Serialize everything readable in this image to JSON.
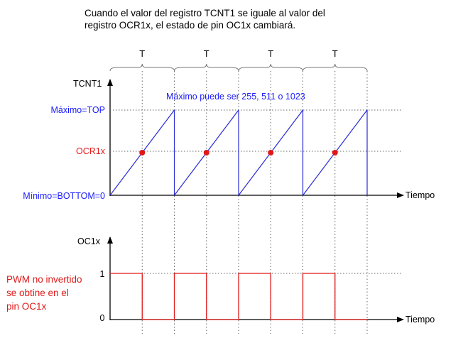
{
  "caption": {
    "line1": "Cuando el valor del registro TCNT1 se iguale al valor del",
    "line2": "registro OCR1x, el estado de pin OC1x cambiará."
  },
  "period_label": "T",
  "top_chart": {
    "axis_label": "TCNT1",
    "x_axis_label": "Tiempo",
    "levels": {
      "max": "Máximo=TOP",
      "compare": "OCR1x",
      "min": "Mínimo=BOTTOM=0"
    },
    "annotation": "Máximo puede ser 255, 511 o 1023"
  },
  "bottom_chart": {
    "axis_label": "OC1x",
    "x_axis_label": "Tiempo",
    "levels": {
      "high": "1",
      "low": "0"
    },
    "note": [
      "PWM no invertido",
      "se obtine en el",
      "pin OC1x"
    ]
  },
  "colors": {
    "axis": "#000000",
    "grid": "#666666",
    "level_labels": "#1a1aff",
    "counter_wave": "#2a2ad6",
    "compare": "#e01818",
    "output_wave": "#e01818"
  },
  "periods": 4,
  "compare_fraction": 0.5,
  "output_duty": 0.5
}
